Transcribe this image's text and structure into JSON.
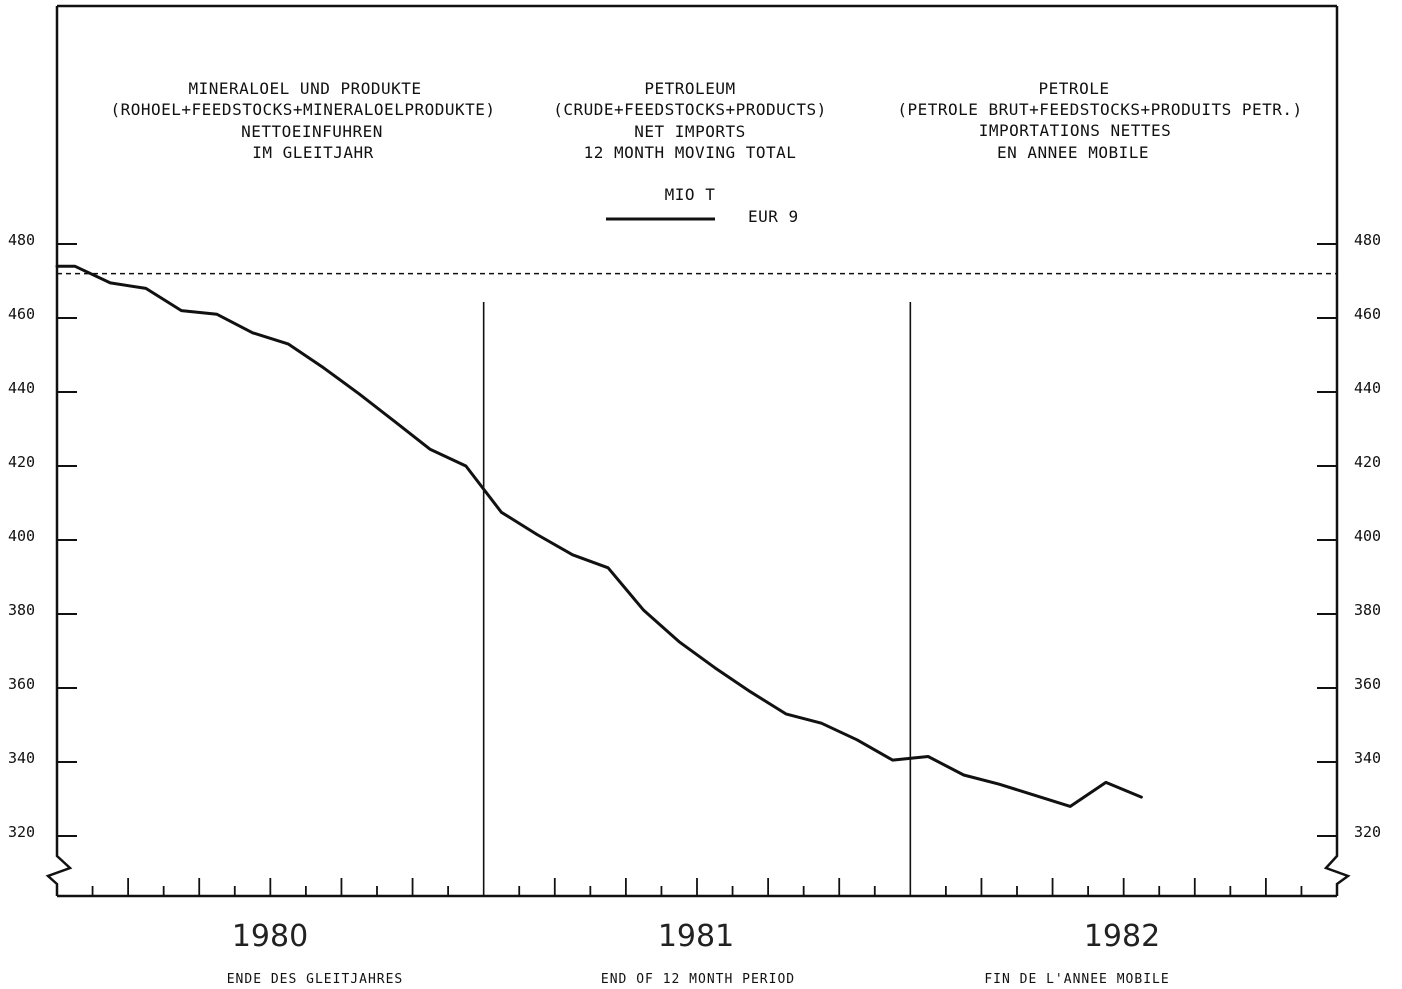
{
  "chart_data": {
    "type": "line",
    "titles": {
      "german": [
        "MINERALOEL UND PRODUKTE",
        "(ROHOEL+FEEDSTOCKS+MINERALOELPRODUKTE)",
        "NETTOEINFUHREN",
        "IM GLEITJAHR"
      ],
      "english": [
        "PETROLEUM",
        "(CRUDE+FEEDSTOCKS+PRODUCTS)",
        "NET IMPORTS",
        "12 MONTH MOVING TOTAL"
      ],
      "french": [
        "PETROLE",
        "(PETROLE BRUT+FEEDSTOCKS+PRODUITS PETR.)",
        "IMPORTATIONS NETTES",
        "EN ANNEE MOBILE"
      ]
    },
    "unit": "MIO T",
    "legend_label": "EUR 9",
    "years": [
      "1980",
      "1981",
      "1982"
    ],
    "footer": [
      "ENDE DES GLEITJAHRES",
      "END OF 12 MONTH PERIOD",
      "FIN DE L'ANNEE MOBILE"
    ],
    "y_ticks": [
      "320",
      "340",
      "360",
      "380",
      "400",
      "420",
      "440",
      "460",
      "480"
    ],
    "ylim": [
      306,
      490
    ],
    "xlim": [
      0,
      36
    ],
    "reference_line": 472,
    "year_dividers": [
      12,
      24
    ],
    "grid": false,
    "series": [
      {
        "x": [
          0,
          0.5,
          1.5,
          2.5,
          3.5,
          4.5,
          5.5,
          6.5,
          7.5,
          8.5,
          9.5,
          10.5,
          11.5,
          12.5,
          13.5,
          14.5,
          15.5,
          16.5,
          17.5,
          18.5,
          19.5,
          20.5,
          21.5,
          22.5,
          23.5,
          24.5,
          25.5,
          26.5,
          27.5,
          28.5,
          29.5,
          30.5
        ],
        "y": [
          474,
          474,
          469.5,
          468,
          462,
          461,
          456,
          453,
          446.5,
          439.5,
          432,
          424.5,
          420,
          407.5,
          401.5,
          396,
          392.5,
          381,
          372.5,
          365.5,
          359,
          353,
          350.5,
          346,
          340.5,
          341.5,
          336.5,
          334,
          331,
          328,
          334.5,
          330.5
        ]
      }
    ]
  }
}
